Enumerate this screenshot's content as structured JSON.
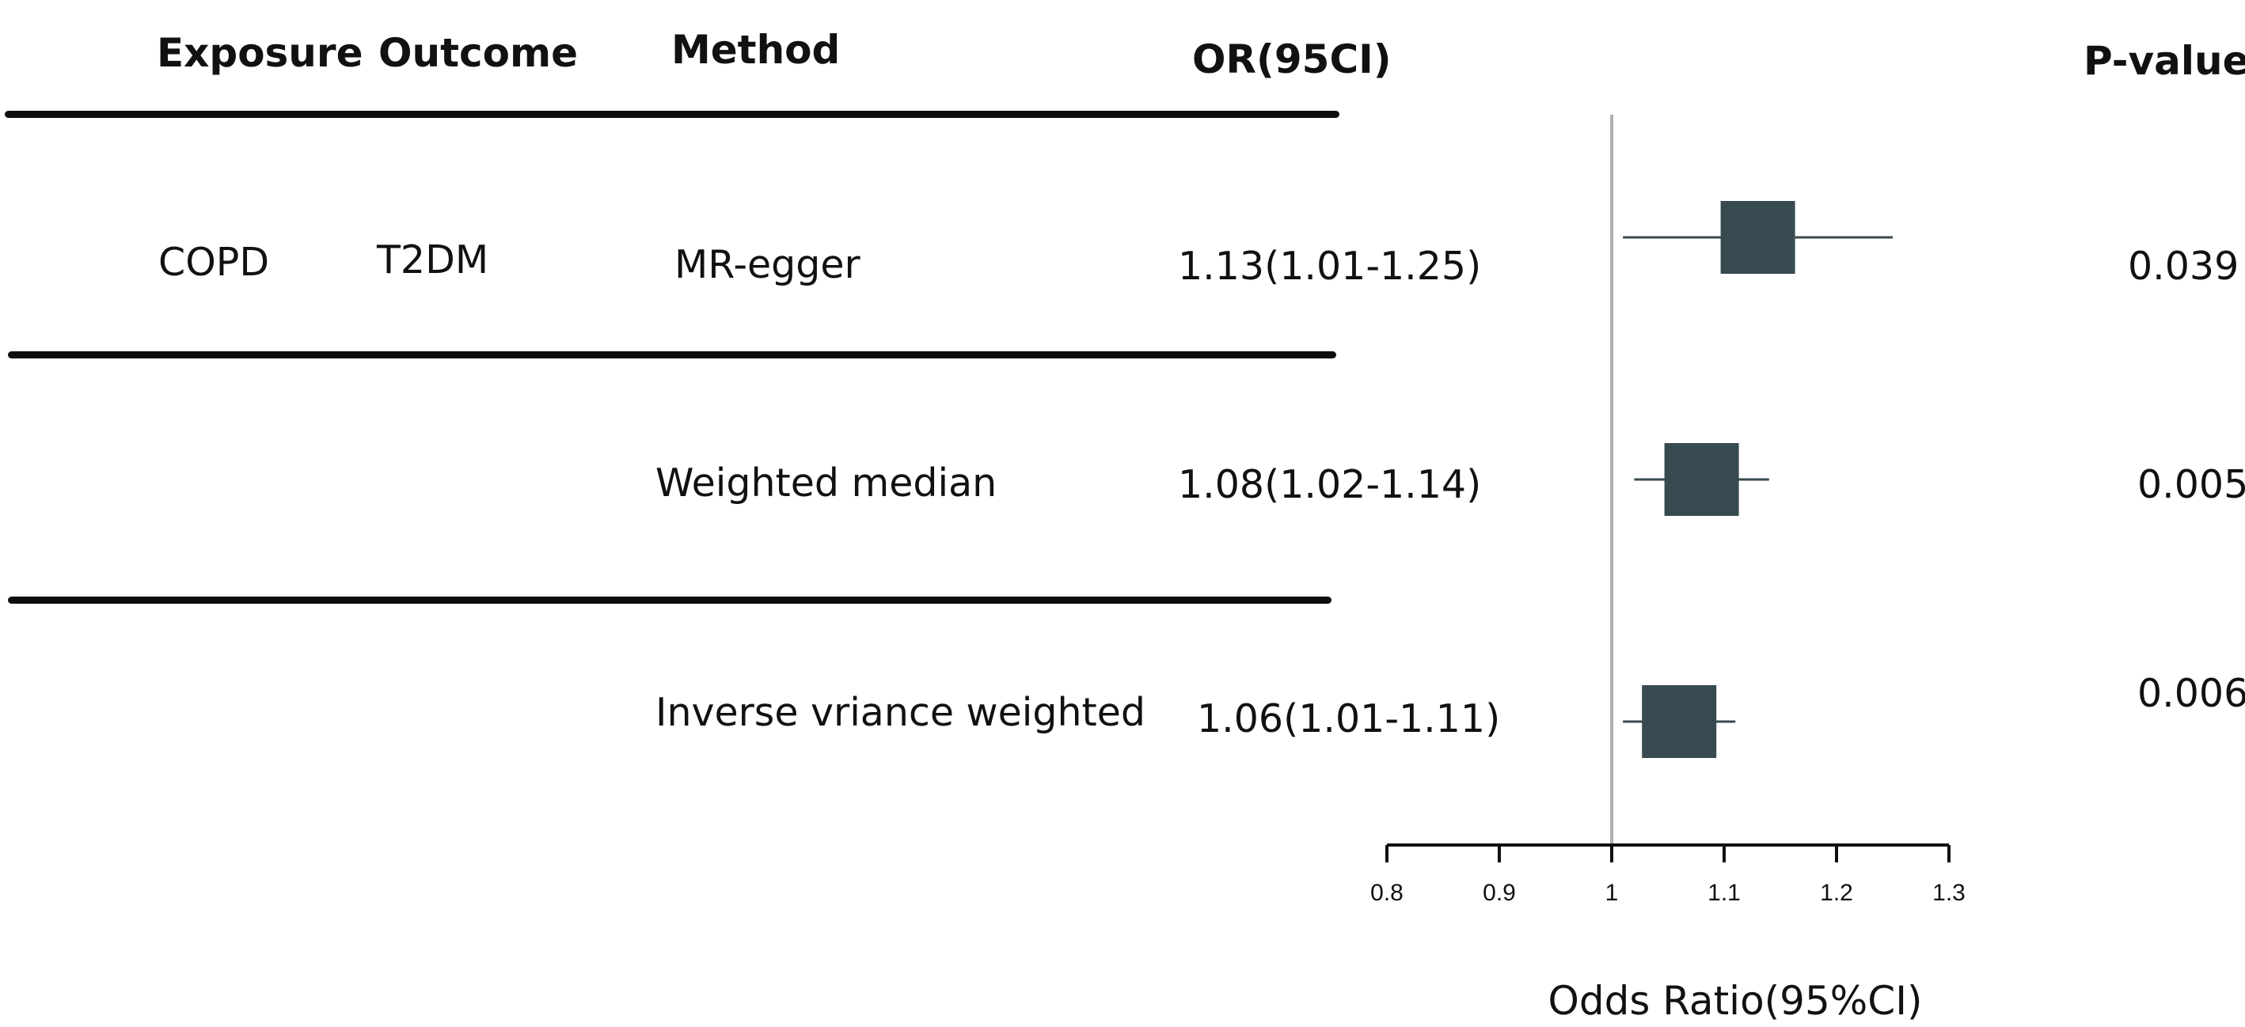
{
  "headers": {
    "exposure": "Exposure",
    "outcome": "Outcome",
    "method": "Method",
    "or": "OR(95CI)",
    "pvalue": "P-value"
  },
  "rows": [
    {
      "exposure": "COPD",
      "outcome": "T2DM",
      "method": "MR-egger",
      "or_text": "1.13(1.01-1.25)",
      "p": "0.039"
    },
    {
      "exposure": "",
      "outcome": "",
      "method": "Weighted median",
      "or_text": "1.08(1.02-1.14)",
      "p": "0.005"
    },
    {
      "exposure": "",
      "outcome": "",
      "method": "Inverse vriance weighted",
      "or_text": "1.06(1.01-1.11)",
      "p": "0.006"
    }
  ],
  "chart_data": {
    "type": "forest",
    "xlabel": "Odds Ratio(95%CI)",
    "xlim": [
      0.8,
      1.3
    ],
    "xticks": [
      0.8,
      0.9,
      1,
      1.1,
      1.2,
      1.3
    ],
    "xtick_labels": [
      "0.8",
      "0.9",
      "1",
      "1.1",
      "1.2",
      "1.3"
    ],
    "reference_line": 1,
    "marker_color": "#374a4f",
    "reference_color": "#b0b0b0",
    "series": [
      {
        "method": "MR-egger",
        "or": 1.13,
        "lower": 1.01,
        "upper": 1.25
      },
      {
        "method": "Weighted median",
        "or": 1.08,
        "lower": 1.02,
        "upper": 1.14
      },
      {
        "method": "Inverse vriance weighted",
        "or": 1.06,
        "lower": 1.01,
        "upper": 1.11
      }
    ]
  }
}
